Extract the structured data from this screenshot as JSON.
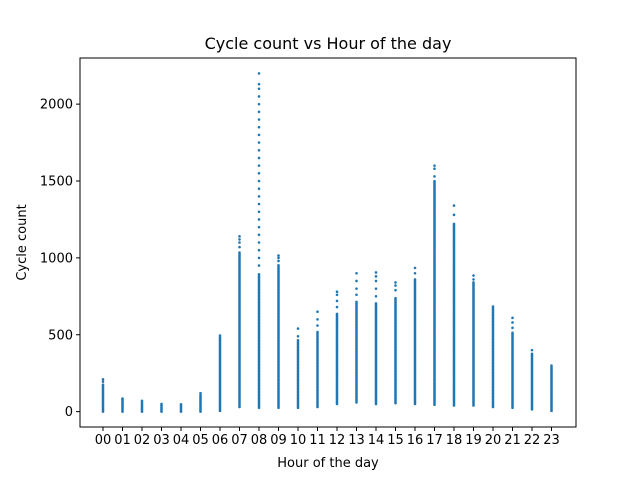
{
  "chart_data": {
    "type": "scatter",
    "title": "Cycle count vs Hour of the day",
    "xlabel": "Hour of the day",
    "ylabel": "Cycle count",
    "categories": [
      "00",
      "01",
      "02",
      "03",
      "04",
      "05",
      "06",
      "07",
      "08",
      "09",
      "10",
      "11",
      "12",
      "13",
      "14",
      "15",
      "16",
      "17",
      "18",
      "19",
      "20",
      "21",
      "22",
      "23"
    ],
    "ylim": [
      -100,
      2300
    ],
    "yticks": [
      0,
      500,
      1000,
      1500,
      2000
    ],
    "grid": false,
    "marker_color": "#1f77b4",
    "series": [
      {
        "columns": [
          {
            "x": "00",
            "min": 0,
            "dense_max": 180,
            "outliers": [
              195,
              210
            ]
          },
          {
            "x": "01",
            "min": 0,
            "dense_max": 80,
            "outliers": [
              85
            ]
          },
          {
            "x": "02",
            "min": 0,
            "dense_max": 65,
            "outliers": [
              70
            ]
          },
          {
            "x": "03",
            "min": 0,
            "dense_max": 45,
            "outliers": [
              50
            ]
          },
          {
            "x": "04",
            "min": 0,
            "dense_max": 40,
            "outliers": [
              48
            ]
          },
          {
            "x": "05",
            "min": 0,
            "dense_max": 110,
            "outliers": [
              120
            ]
          },
          {
            "x": "06",
            "min": 5,
            "dense_max": 490,
            "outliers": [
              495
            ]
          },
          {
            "x": "07",
            "min": 30,
            "dense_max": 1040,
            "outliers": [
              1070,
              1100,
              1120,
              1140
            ]
          },
          {
            "x": "08",
            "min": 25,
            "dense_max": 900,
            "outliers": [
              950,
              1000,
              1050,
              1100,
              1150,
              1200,
              1250,
              1300,
              1350,
              1400,
              1450,
              1500,
              1550,
              1600,
              1650,
              1700,
              1750,
              1800,
              1850,
              1900,
              1950,
              2000,
              2050,
              2100,
              2130,
              2200
            ]
          },
          {
            "x": "09",
            "min": 25,
            "dense_max": 960,
            "outliers": [
              980,
              1000,
              1015
            ]
          },
          {
            "x": "10",
            "min": 25,
            "dense_max": 470,
            "outliers": [
              490,
              540
            ]
          },
          {
            "x": "11",
            "min": 30,
            "dense_max": 520,
            "outliers": [
              560,
              600,
              650
            ]
          },
          {
            "x": "12",
            "min": 50,
            "dense_max": 640,
            "outliers": [
              680,
              720,
              760,
              780
            ]
          },
          {
            "x": "13",
            "min": 60,
            "dense_max": 720,
            "outliers": [
              760,
              800,
              850,
              900
            ]
          },
          {
            "x": "14",
            "min": 50,
            "dense_max": 710,
            "outliers": [
              750,
              800,
              850,
              880,
              905
            ]
          },
          {
            "x": "15",
            "min": 55,
            "dense_max": 740,
            "outliers": [
              790,
              820,
              840
            ]
          },
          {
            "x": "16",
            "min": 50,
            "dense_max": 860,
            "outliers": [
              900,
              935
            ]
          },
          {
            "x": "17",
            "min": 45,
            "dense_max": 1500,
            "outliers": [
              1530,
              1580,
              1600
            ]
          },
          {
            "x": "18",
            "min": 40,
            "dense_max": 1230,
            "outliers": [
              1280,
              1340
            ]
          },
          {
            "x": "19",
            "min": 40,
            "dense_max": 840,
            "outliers": [
              860,
              885
            ]
          },
          {
            "x": "20",
            "min": 30,
            "dense_max": 690,
            "outliers": []
          },
          {
            "x": "21",
            "min": 25,
            "dense_max": 520,
            "outliers": [
              545,
              580,
              610
            ]
          },
          {
            "x": "22",
            "min": 15,
            "dense_max": 380,
            "outliers": [
              400
            ]
          },
          {
            "x": "23",
            "min": 5,
            "dense_max": 290,
            "outliers": [
              300
            ]
          }
        ]
      }
    ]
  }
}
